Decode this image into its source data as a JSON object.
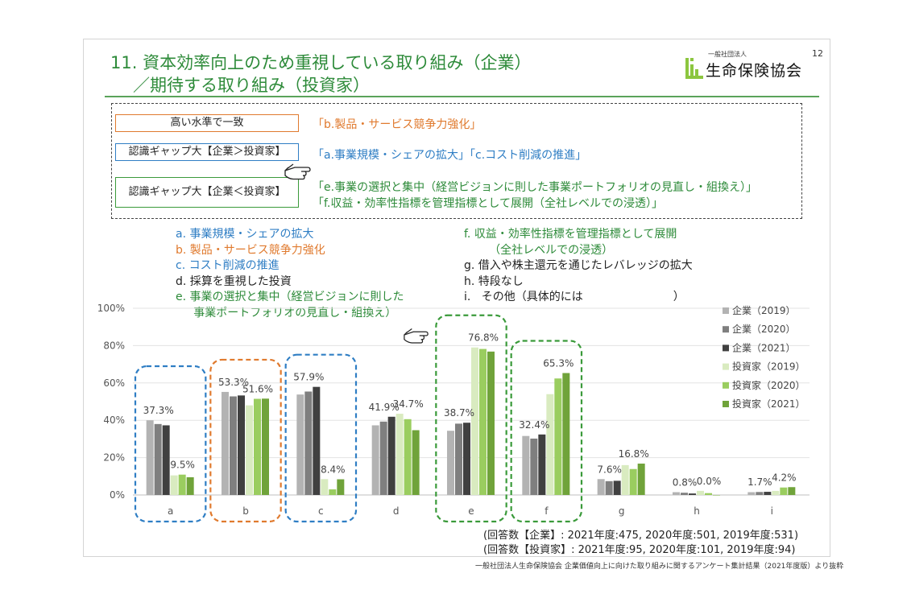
{
  "page_number": "12",
  "title_line1": "11. 資本効率向上のため重視している取り組み（企業）",
  "title_line2": "／期待する取り組み（投資家）",
  "logo_small": "一般社団法人",
  "logo_main": "生命保険協会",
  "summary": [
    {
      "label": "高い水準で一致",
      "text": "「b.製品・サービス競争力強化」",
      "color": "#e07a2e"
    },
    {
      "label": "認識ギャップ大【企業＞投資家】",
      "text": "「a.事業規模・シェアの拡大」「c.コスト削減の推進」",
      "color": "#2f7ec4"
    },
    {
      "label": "認識ギャップ大【企業＜投資家】",
      "text": "「e.事業の選択と集中（経営ビジョンに則した事業ポートフォリオの見直し・組換え）」",
      "text2": "「f.収益・効率性指標を管理指標として展開（全社レベルでの浸透）」",
      "color": "#3a9a3a"
    }
  ],
  "item_list_left": [
    {
      "text": "a.  事業規模・シェアの拡大",
      "color": "#2f7ec4"
    },
    {
      "text": "b.  製品・サービス競争力強化",
      "color": "#e07a2e"
    },
    {
      "text": "c.  コスト削減の推進",
      "color": "#2f7ec4"
    },
    {
      "text": "d.  採算を重視した投資",
      "color": "#222222"
    },
    {
      "text": "e.  事業の選択と集中（経営ビジョンに則した",
      "color": "#2e8b3a"
    },
    {
      "text": "     事業ポートフォリオの見直し・組換え）",
      "color": "#2e8b3a"
    }
  ],
  "item_list_right": [
    {
      "text": "f.   収益・効率性指標を管理指標として展開",
      "color": "#2e8b3a"
    },
    {
      "text": "       （全社レベルでの浸透）",
      "color": "#2e8b3a"
    },
    {
      "text": "g.  借入や株主還元を通じたレバレッジの拡大",
      "color": "#222222"
    },
    {
      "text": "h.  特段なし",
      "color": "#222222"
    },
    {
      "text": "i.   その他（具体的には　　　　　　　　）",
      "color": "#222222"
    }
  ],
  "footnote1": "(回答数【企業】: 2021年度:475, 2020年度:501, 2019年度:531)",
  "footnote2": "(回答数【投資家】: 2021年度:95, 2020年度:101, 2019年度:94)",
  "source": "一般社団法人生命保険協会 企業価値向上に向けた取り組みに関するアンケート集計結果（2021年度版）より抜粋",
  "chart_data": {
    "type": "bar",
    "categories": [
      "a",
      "b",
      "c",
      "d",
      "e",
      "f",
      "g",
      "h",
      "i"
    ],
    "ylim": [
      0,
      100
    ],
    "yticks": [
      "0%",
      "20%",
      "40%",
      "60%",
      "80%",
      "100%"
    ],
    "grid": true,
    "legend_position": "right",
    "series": [
      {
        "name": "企業（2019）",
        "color": "#b3b3b3",
        "values": [
          40.0,
          55.2,
          53.8,
          37.3,
          34.4,
          31.6,
          8.5,
          1.5,
          1.5
        ]
      },
      {
        "name": "企業（2020）",
        "color": "#7f7f7f",
        "values": [
          38.0,
          52.8,
          55.4,
          39.3,
          38.2,
          30.2,
          7.4,
          1.2,
          1.6
        ]
      },
      {
        "name": "企業（2021）",
        "color": "#404040",
        "values": [
          37.3,
          53.3,
          57.9,
          41.9,
          38.7,
          32.4,
          7.6,
          0.8,
          1.7
        ]
      },
      {
        "name": "投資家（2019）",
        "color": "#d9ebc0",
        "values": [
          10.5,
          48.0,
          8.5,
          43.5,
          79.0,
          54.0,
          16.0,
          2.2,
          2.2
        ]
      },
      {
        "name": "投資家（2020）",
        "color": "#9acd5f",
        "values": [
          10.9,
          51.5,
          3.0,
          40.6,
          78.2,
          62.4,
          13.9,
          1.0,
          4.0
        ]
      },
      {
        "name": "投資家（2021）",
        "color": "#70a33a",
        "values": [
          9.5,
          51.6,
          8.4,
          34.7,
          76.8,
          65.3,
          16.8,
          0.0,
          4.2
        ]
      }
    ],
    "data_labels": [
      {
        "category": "a",
        "text": "37.3%"
      },
      {
        "category": "a",
        "text": "9.5%"
      },
      {
        "category": "b",
        "text": "53.3%"
      },
      {
        "category": "b",
        "text": "51.6%"
      },
      {
        "category": "c",
        "text": "57.9%"
      },
      {
        "category": "c",
        "text": "8.4%"
      },
      {
        "category": "d",
        "text": "41.9%"
      },
      {
        "category": "d",
        "text": "34.7%"
      },
      {
        "category": "e",
        "text": "38.7%"
      },
      {
        "category": "e",
        "text": "76.8%"
      },
      {
        "category": "f",
        "text": "32.4%"
      },
      {
        "category": "f",
        "text": "65.3%"
      },
      {
        "category": "g",
        "text": "7.6%"
      },
      {
        "category": "g",
        "text": "16.8%"
      },
      {
        "category": "h",
        "text": "0.8%"
      },
      {
        "category": "h",
        "text": "0.0%"
      },
      {
        "category": "i",
        "text": "1.7%"
      },
      {
        "category": "i",
        "text": "4.2%"
      }
    ],
    "highlights": [
      {
        "category": "a",
        "color": "#2f7ec4"
      },
      {
        "category": "b",
        "color": "#e07a2e"
      },
      {
        "category": "c",
        "color": "#2f7ec4"
      },
      {
        "category": "e",
        "color": "#3a9a3a"
      },
      {
        "category": "f",
        "color": "#3a9a3a"
      }
    ]
  }
}
